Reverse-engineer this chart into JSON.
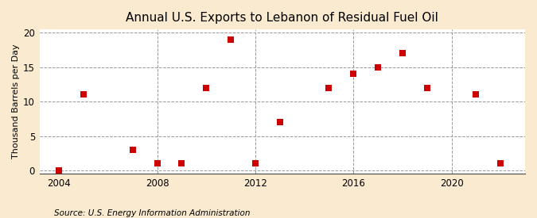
{
  "title": "Annual U.S. Exports to Lebanon of Residual Fuel Oil",
  "ylabel": "Thousand Barrels per Day",
  "source": "Source: U.S. Energy Information Administration",
  "years": [
    2004,
    2005,
    2007,
    2008,
    2009,
    2010,
    2011,
    2012,
    2013,
    2015,
    2016,
    2017,
    2018,
    2019,
    2021,
    2022
  ],
  "values": [
    0.0,
    11.0,
    3.0,
    1.0,
    1.0,
    12.0,
    19.0,
    1.0,
    7.0,
    12.0,
    14.0,
    15.0,
    17.0,
    12.0,
    11.0,
    1.0
  ],
  "marker_color": "#cc0000",
  "marker_size": 28,
  "background_color": "#faebd0",
  "grid_color": "#999999",
  "vline_color": "#999999",
  "xlim": [
    2003.2,
    2023.0
  ],
  "ylim": [
    -0.5,
    20.5
  ],
  "yticks": [
    0,
    5,
    10,
    15,
    20
  ],
  "xticks": [
    2004,
    2008,
    2012,
    2016,
    2020
  ],
  "vlines": [
    2008,
    2012,
    2016,
    2020
  ],
  "title_fontsize": 11,
  "label_fontsize": 8,
  "tick_fontsize": 8.5,
  "source_fontsize": 7.5
}
